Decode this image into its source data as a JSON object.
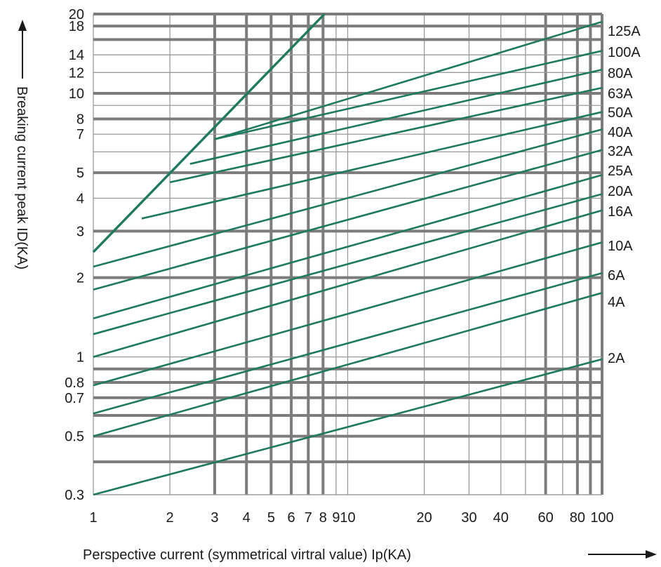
{
  "chart_data": {
    "type": "line",
    "title": "",
    "xlabel": "Perspective current (symmetrical virtral value) Ip(KA)",
    "ylabel": "Breaking current peak ID(KA)",
    "x_scale": "log",
    "y_scale": "log",
    "xlim": [
      1,
      100
    ],
    "ylim": [
      0.3,
      20
    ],
    "grid": true,
    "legend": "series labels at right end of lines",
    "x_ticks": [
      1,
      2,
      3,
      4,
      5,
      6,
      7,
      8,
      9,
      10,
      20,
      30,
      40,
      60,
      80,
      100
    ],
    "x_tick_labels": [
      "1",
      "2",
      "3",
      "4",
      "5",
      "6",
      "7",
      "8",
      "9",
      "10",
      "20",
      "30",
      "40",
      "60",
      "80",
      "100"
    ],
    "y_ticks": [
      0.3,
      0.5,
      0.7,
      0.8,
      1,
      2,
      3,
      4,
      5,
      7,
      8,
      10,
      12,
      14,
      18,
      20
    ],
    "y_tick_labels": [
      "0.3",
      "0.5",
      "0.7",
      "0.8",
      "1",
      "2",
      "3",
      "4",
      "5",
      "7",
      "8",
      "10",
      "12",
      "14",
      "18",
      "20"
    ],
    "x_heavy_gridlines": [
      3,
      4,
      5,
      6,
      7,
      8,
      60,
      80,
      90,
      100
    ],
    "y_heavy_gridlines": [
      0.4,
      0.5,
      0.6,
      0.7,
      0.8,
      0.9,
      2,
      3,
      5,
      8,
      10,
      16,
      18,
      20
    ],
    "envelope": {
      "x": [
        1,
        8.1
      ],
      "y": [
        2.5,
        20
      ]
    },
    "series": [
      {
        "name": "2A",
        "x": [
          1,
          100
        ],
        "y": [
          0.3,
          0.98
        ]
      },
      {
        "name": "4A",
        "x": [
          1,
          100
        ],
        "y": [
          0.5,
          1.75
        ]
      },
      {
        "name": "6A",
        "x": [
          1,
          100
        ],
        "y": [
          0.61,
          2.08
        ]
      },
      {
        "name": "10A",
        "x": [
          1,
          100
        ],
        "y": [
          0.78,
          2.72
        ]
      },
      {
        "name": "16A",
        "x": [
          1,
          100
        ],
        "y": [
          1.0,
          3.6
        ]
      },
      {
        "name": "20A",
        "x": [
          1,
          100
        ],
        "y": [
          1.22,
          4.15
        ]
      },
      {
        "name": "25A",
        "x": [
          1,
          100
        ],
        "y": [
          1.4,
          4.9
        ]
      },
      {
        "name": "32A",
        "x": [
          1,
          100
        ],
        "y": [
          1.8,
          6.1
        ]
      },
      {
        "name": "40A",
        "x": [
          1,
          100
        ],
        "y": [
          2.2,
          7.3
        ]
      },
      {
        "name": "50A",
        "x": [
          1.55,
          100
        ],
        "y": [
          3.35,
          8.5
        ]
      },
      {
        "name": "63A",
        "x": [
          2.0,
          100
        ],
        "y": [
          4.6,
          10.5
        ]
      },
      {
        "name": "80A",
        "x": [
          2.4,
          100
        ],
        "y": [
          5.4,
          12.3
        ]
      },
      {
        "name": "100A",
        "x": [
          3.0,
          100
        ],
        "y": [
          6.7,
          14.5
        ]
      },
      {
        "name": "125A",
        "x": [
          3.0,
          100
        ],
        "y": [
          6.7,
          18.7
        ]
      }
    ],
    "colors": {
      "line": "#1e7a5e",
      "grid_light": "#9a9a9a",
      "grid_heavy": "#7c7c7c",
      "text": "#1a1a1a"
    }
  }
}
